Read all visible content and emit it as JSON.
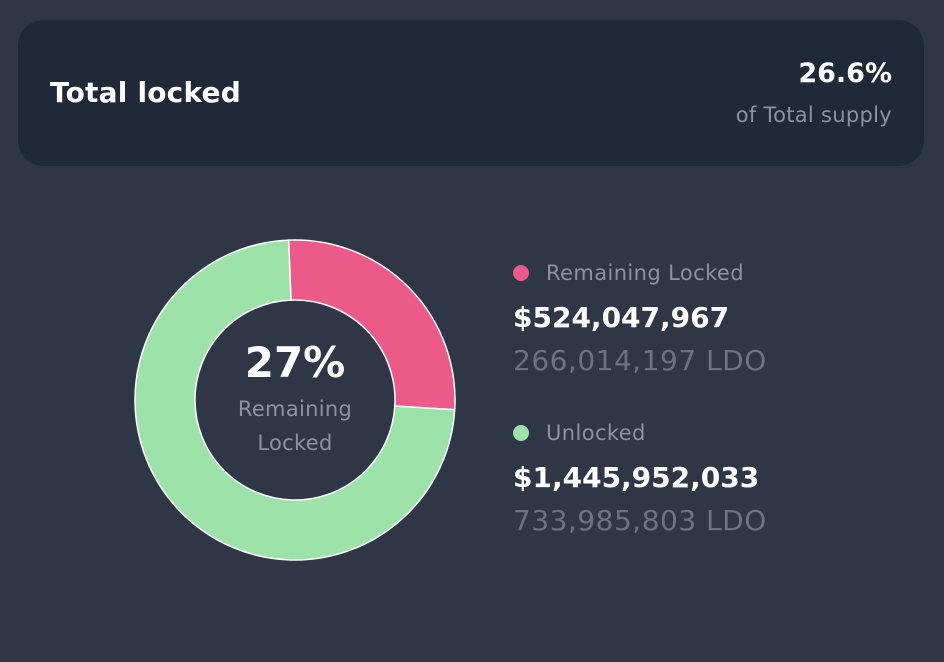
{
  "summary": {
    "title": "Total locked",
    "percent": "26.6%",
    "percent_caption": "of Total supply"
  },
  "donut": {
    "center_value": "27%",
    "center_label": "Remaining Locked"
  },
  "legend": [
    {
      "label": "Remaining Locked",
      "usd": "$524,047,967",
      "tokens": "266,014,197 LDO",
      "color": "#ec5a8a"
    },
    {
      "label": "Unlocked",
      "usd": "$1,445,952,033",
      "tokens": "733,985,803 LDO",
      "color": "#9de3a9"
    }
  ],
  "chart_data": {
    "type": "pie",
    "categories": [
      "Remaining Locked",
      "Unlocked"
    ],
    "values": [
      266014197,
      733985803
    ],
    "colors": [
      "#ec5a8a",
      "#9de3a9"
    ]
  }
}
